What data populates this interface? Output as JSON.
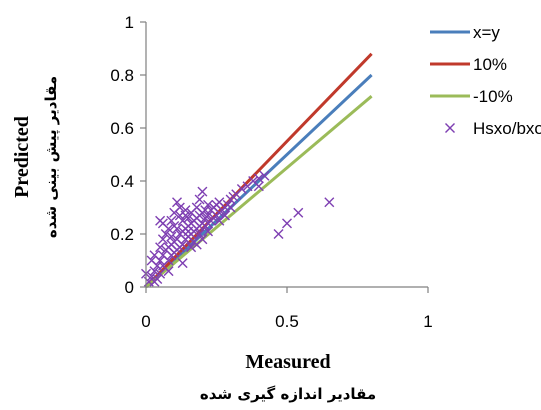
{
  "chart_data": {
    "type": "scatter",
    "xlabel": "Measured",
    "xlabel_secondary": "مقادیر اندازه گیری شده",
    "ylabel": "Predicted",
    "ylabel_secondary": "مقادیر پیش بینی شده",
    "xlim": [
      0,
      1
    ],
    "ylim": [
      0,
      1
    ],
    "x_ticks": [
      "0",
      "0.5",
      "1"
    ],
    "y_ticks": [
      "0",
      "0.2",
      "0.4",
      "0.6",
      "0.8",
      "1"
    ],
    "grid": false,
    "legend_position": "top-right",
    "series": [
      {
        "name": "x=y",
        "kind": "line",
        "color": "#4a7ebb",
        "x": [
          0,
          0.8
        ],
        "y": [
          0,
          0.8
        ]
      },
      {
        "name": "10%",
        "kind": "line",
        "color": "#c0392b",
        "x": [
          0,
          0.8
        ],
        "y": [
          0,
          0.88
        ]
      },
      {
        "name": "-10%",
        "kind": "line",
        "color": "#9bbb59",
        "x": [
          0,
          0.8
        ],
        "y": [
          0,
          0.72
        ]
      },
      {
        "name": "Hsxo/bxo",
        "kind": "scatter",
        "marker": "x",
        "color": "#7e3fb2",
        "x": [
          0.0,
          0.01,
          0.02,
          0.02,
          0.03,
          0.03,
          0.04,
          0.04,
          0.05,
          0.05,
          0.05,
          0.06,
          0.06,
          0.06,
          0.07,
          0.07,
          0.08,
          0.08,
          0.08,
          0.09,
          0.09,
          0.09,
          0.1,
          0.1,
          0.1,
          0.11,
          0.11,
          0.11,
          0.12,
          0.12,
          0.12,
          0.13,
          0.13,
          0.13,
          0.14,
          0.14,
          0.14,
          0.15,
          0.15,
          0.15,
          0.16,
          0.16,
          0.16,
          0.17,
          0.17,
          0.17,
          0.18,
          0.18,
          0.18,
          0.19,
          0.19,
          0.19,
          0.2,
          0.2,
          0.2,
          0.21,
          0.21,
          0.21,
          0.22,
          0.22,
          0.22,
          0.23,
          0.23,
          0.24,
          0.24,
          0.25,
          0.25,
          0.26,
          0.26,
          0.27,
          0.28,
          0.29,
          0.3,
          0.31,
          0.32,
          0.34,
          0.36,
          0.38,
          0.4,
          0.42,
          0.3,
          0.28,
          0.4,
          0.47,
          0.5,
          0.54,
          0.65,
          0.06,
          0.09,
          0.12,
          0.15,
          0.19,
          0.2,
          0.08,
          0.11,
          0.05,
          0.14,
          0.16,
          0.03,
          0.13,
          0.1,
          0.18,
          0.22,
          0.24,
          0.26
        ],
        "y": [
          0.05,
          0.02,
          0.04,
          0.1,
          0.06,
          0.12,
          0.08,
          0.03,
          0.1,
          0.15,
          0.05,
          0.12,
          0.18,
          0.08,
          0.14,
          0.2,
          0.15,
          0.22,
          0.1,
          0.16,
          0.25,
          0.12,
          0.17,
          0.28,
          0.13,
          0.18,
          0.22,
          0.14,
          0.2,
          0.3,
          0.15,
          0.21,
          0.25,
          0.16,
          0.22,
          0.27,
          0.18,
          0.23,
          0.19,
          0.26,
          0.2,
          0.24,
          0.28,
          0.21,
          0.25,
          0.17,
          0.22,
          0.26,
          0.3,
          0.23,
          0.27,
          0.2,
          0.24,
          0.28,
          0.36,
          0.23,
          0.26,
          0.29,
          0.24,
          0.27,
          0.31,
          0.25,
          0.29,
          0.26,
          0.3,
          0.27,
          0.31,
          0.28,
          0.32,
          0.29,
          0.3,
          0.31,
          0.33,
          0.34,
          0.35,
          0.37,
          0.38,
          0.4,
          0.41,
          0.42,
          0.3,
          0.27,
          0.38,
          0.2,
          0.24,
          0.28,
          0.32,
          0.24,
          0.19,
          0.27,
          0.21,
          0.33,
          0.18,
          0.06,
          0.32,
          0.25,
          0.29,
          0.15,
          0.02,
          0.09,
          0.23,
          0.16,
          0.21,
          0.3,
          0.25
        ]
      }
    ]
  }
}
